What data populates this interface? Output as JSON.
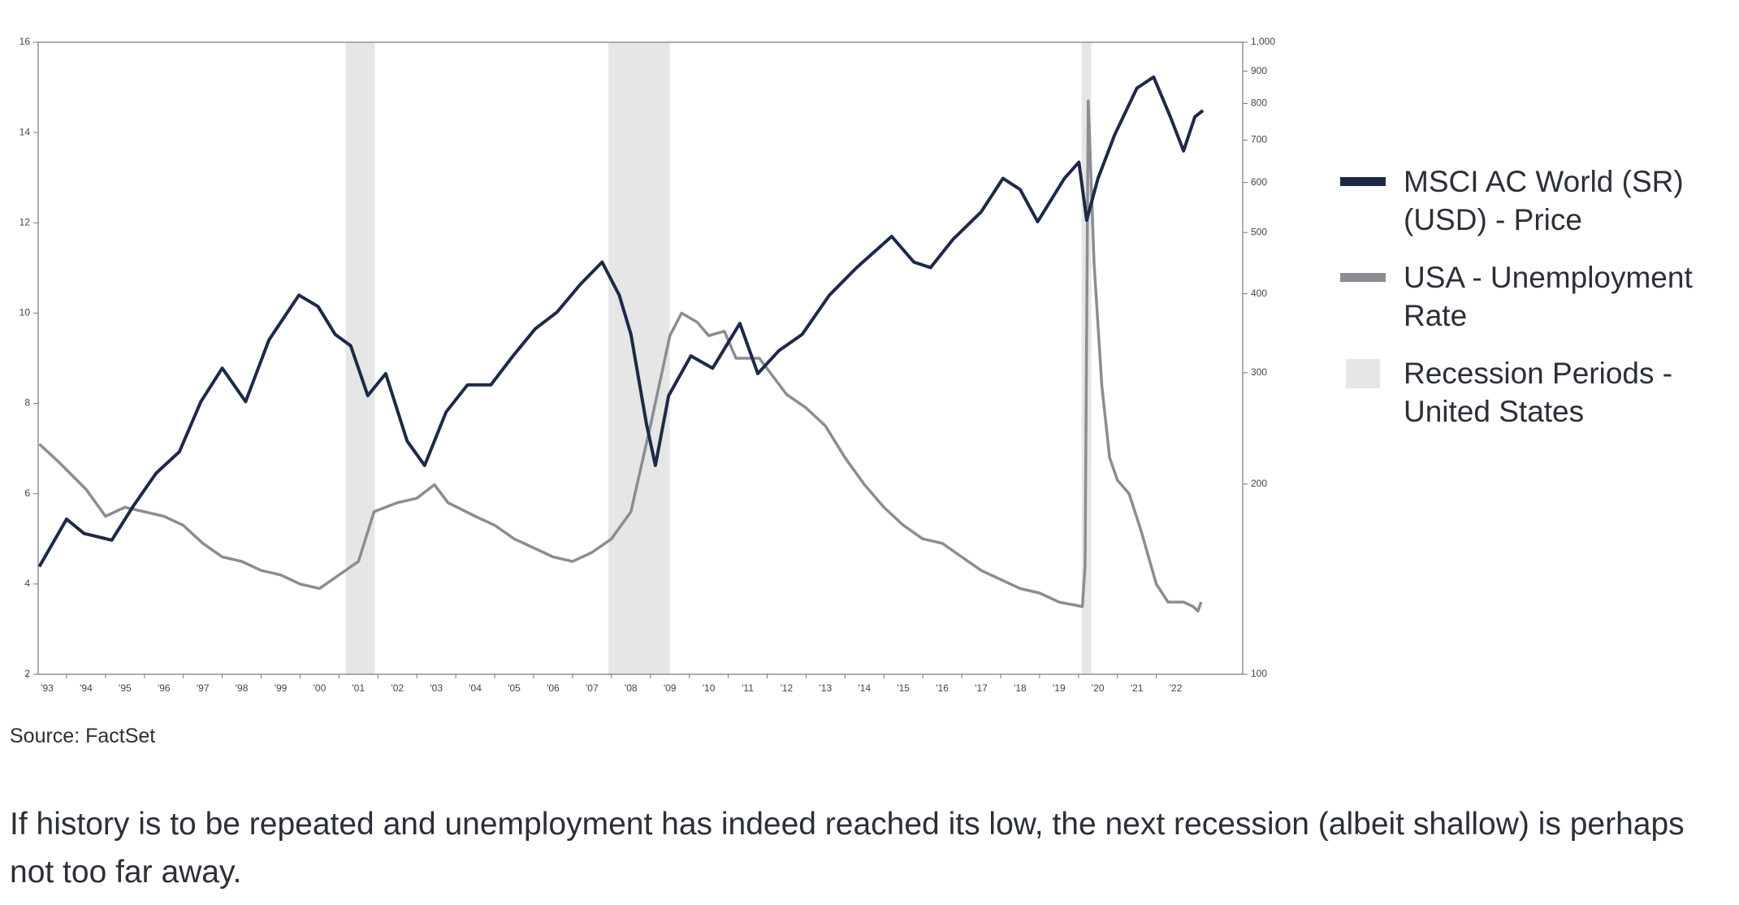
{
  "chart_data": {
    "type": "line",
    "xlim": [
      1993.27,
      2024.22
    ],
    "xticks": [
      {
        "value": 1993,
        "label": "'93"
      },
      {
        "value": 1994,
        "label": "'94"
      },
      {
        "value": 1995,
        "label": "'95"
      },
      {
        "value": 1996,
        "label": "'96"
      },
      {
        "value": 1997,
        "label": "'97"
      },
      {
        "value": 1998,
        "label": "'98"
      },
      {
        "value": 1999,
        "label": "'99"
      },
      {
        "value": 2000,
        "label": "'00"
      },
      {
        "value": 2001,
        "label": "'01"
      },
      {
        "value": 2002,
        "label": "'02"
      },
      {
        "value": 2003,
        "label": "'03"
      },
      {
        "value": 2004,
        "label": "'04"
      },
      {
        "value": 2005,
        "label": "'05"
      },
      {
        "value": 2006,
        "label": "'06"
      },
      {
        "value": 2007,
        "label": "'07"
      },
      {
        "value": 2008,
        "label": "'08"
      },
      {
        "value": 2009,
        "label": "'09"
      },
      {
        "value": 2010,
        "label": "'10"
      },
      {
        "value": 2011,
        "label": "'11"
      },
      {
        "value": 2012,
        "label": "'12"
      },
      {
        "value": 2013,
        "label": "'13"
      },
      {
        "value": 2014,
        "label": "'14"
      },
      {
        "value": 2015,
        "label": "'15"
      },
      {
        "value": 2016,
        "label": "'16"
      },
      {
        "value": 2017,
        "label": "'17"
      },
      {
        "value": 2018,
        "label": "'18"
      },
      {
        "value": 2019,
        "label": "'19"
      },
      {
        "value": 2020,
        "label": "'20"
      },
      {
        "value": 2021,
        "label": "'21"
      },
      {
        "value": 2022,
        "label": "'22"
      }
    ],
    "ylim": [
      2,
      16
    ],
    "yticks": [
      2,
      4,
      6,
      8,
      10,
      12,
      14,
      16
    ],
    "y2lim": [
      100,
      1000
    ],
    "y2log": true,
    "y2ticks": [
      100,
      200,
      300,
      400,
      500,
      600,
      700,
      800,
      900,
      {
        "value": 1000,
        "label": "1,000"
      }
    ],
    "series": [
      {
        "name": "MSCI AC World (SR) (USD) - Price",
        "color": "#1c2a48",
        "axis": "y2",
        "x": [
          1993.3,
          1994.0,
          1994.45,
          1995.16,
          1995.7,
          1996.3,
          1996.9,
          1997.45,
          1998.0,
          1998.6,
          1999.2,
          1999.97,
          2000.46,
          2000.9,
          2001.3,
          2001.74,
          2002.2,
          2002.75,
          2003.2,
          2003.75,
          2004.3,
          2004.9,
          2005.47,
          2006.04,
          2006.6,
          2007.2,
          2007.76,
          2008.2,
          2008.5,
          2008.9,
          2009.13,
          2009.47,
          2010.04,
          2010.6,
          2011.3,
          2011.76,
          2012.3,
          2012.9,
          2013.6,
          2014.3,
          2015.2,
          2015.77,
          2016.2,
          2016.78,
          2017.5,
          2018.06,
          2018.5,
          2018.95,
          2019.64,
          2020.01,
          2020.21,
          2020.5,
          2020.93,
          2021.5,
          2021.93,
          2022.36,
          2022.7,
          2022.99,
          2023.2
        ],
        "values": [
          148,
          176,
          167,
          163,
          184,
          208,
          225,
          270,
          305,
          270,
          338,
          398,
          382,
          345,
          331,
          276,
          299,
          234,
          214,
          260,
          287,
          287,
          319,
          352,
          374,
          414,
          449,
          398,
          345,
          249,
          214,
          276,
          319,
          305,
          359,
          299,
          325,
          345,
          398,
          440,
          493,
          449,
          440,
          488,
          539,
          609,
          585,
          520,
          609,
          646,
          523,
          609,
          714,
          846,
          881,
          762,
          673,
          762,
          780
        ]
      },
      {
        "name": "USA - Unemployment Rate",
        "color": "#8a8d91",
        "x": [
          1993.3,
          1993.8,
          1994.5,
          1995.0,
          1995.5,
          1996.5,
          1997.0,
          1997.5,
          1998.0,
          1998.5,
          1999.0,
          1999.5,
          2000.0,
          2000.5,
          2001.0,
          2001.5,
          2001.9,
          2002.5,
          2003.0,
          2003.45,
          2003.8,
          2004.5,
          2005.0,
          2005.5,
          2006.0,
          2006.5,
          2007.0,
          2007.5,
          2008.0,
          2008.5,
          2009.0,
          2009.5,
          2009.8,
          2010.2,
          2010.5,
          2010.9,
          2011.2,
          2011.8,
          2012.5,
          2013.0,
          2013.5,
          2014.0,
          2014.5,
          2015.0,
          2015.5,
          2016.0,
          2016.5,
          2017.0,
          2017.5,
          2018.0,
          2018.5,
          2019.0,
          2019.5,
          2020.1,
          2020.17,
          2020.25,
          2020.4,
          2020.6,
          2020.8,
          2021.0,
          2021.3,
          2021.6,
          2022.0,
          2022.3,
          2022.7,
          2022.95,
          2023.07,
          2023.15
        ],
        "values": [
          7.1,
          6.7,
          6.1,
          5.5,
          5.7,
          5.5,
          5.3,
          4.9,
          4.6,
          4.5,
          4.3,
          4.2,
          4.0,
          3.9,
          4.2,
          4.5,
          5.6,
          5.8,
          5.9,
          6.2,
          5.8,
          5.5,
          5.3,
          5.0,
          4.8,
          4.6,
          4.5,
          4.7,
          5.0,
          5.6,
          7.5,
          9.5,
          10.0,
          9.8,
          9.5,
          9.6,
          9.0,
          9.0,
          8.2,
          7.9,
          7.5,
          6.8,
          6.2,
          5.7,
          5.3,
          5.0,
          4.9,
          4.6,
          4.3,
          4.1,
          3.9,
          3.8,
          3.6,
          3.5,
          4.4,
          14.7,
          11.1,
          8.4,
          6.8,
          6.3,
          6.0,
          5.2,
          4.0,
          3.6,
          3.6,
          3.5,
          3.4,
          3.6
        ]
      }
    ],
    "recessions": {
      "name": "Recession Periods - United States",
      "color": "#e6e6e6",
      "periods": [
        [
          2001.17,
          2001.92
        ],
        [
          2007.92,
          2009.5
        ],
        [
          2020.08,
          2020.33
        ]
      ]
    },
    "source": "Source: FactSet",
    "caption": "If history is to be repeated and unemployment has indeed reached its low, the next recession (albeit shallow) is perhaps not too far away."
  }
}
